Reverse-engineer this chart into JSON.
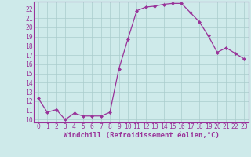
{
  "x": [
    0,
    1,
    2,
    3,
    4,
    5,
    6,
    7,
    8,
    9,
    10,
    11,
    12,
    13,
    14,
    15,
    16,
    17,
    18,
    19,
    20,
    21,
    22,
    23
  ],
  "y": [
    12.3,
    10.8,
    11.1,
    10.0,
    10.7,
    10.4,
    10.4,
    10.4,
    10.8,
    15.5,
    18.7,
    21.8,
    22.2,
    22.3,
    22.5,
    22.6,
    22.6,
    21.6,
    20.6,
    19.1,
    17.3,
    17.8,
    17.2,
    16.6
  ],
  "line_color": "#993399",
  "marker": "D",
  "markersize": 2.0,
  "linewidth": 0.9,
  "bg_color": "#ceeaea",
  "grid_color": "#aacccc",
  "xlabel": "Windchill (Refroidissement éolien,°C)",
  "xlabel_fontsize": 6.5,
  "tick_fontsize": 5.8,
  "ylim": [
    9.7,
    22.8
  ],
  "xlim": [
    -0.5,
    23.5
  ],
  "yticks": [
    10,
    11,
    12,
    13,
    14,
    15,
    16,
    17,
    18,
    19,
    20,
    21,
    22
  ],
  "xticks": [
    0,
    1,
    2,
    3,
    4,
    5,
    6,
    7,
    8,
    9,
    10,
    11,
    12,
    13,
    14,
    15,
    16,
    17,
    18,
    19,
    20,
    21,
    22,
    23
  ]
}
